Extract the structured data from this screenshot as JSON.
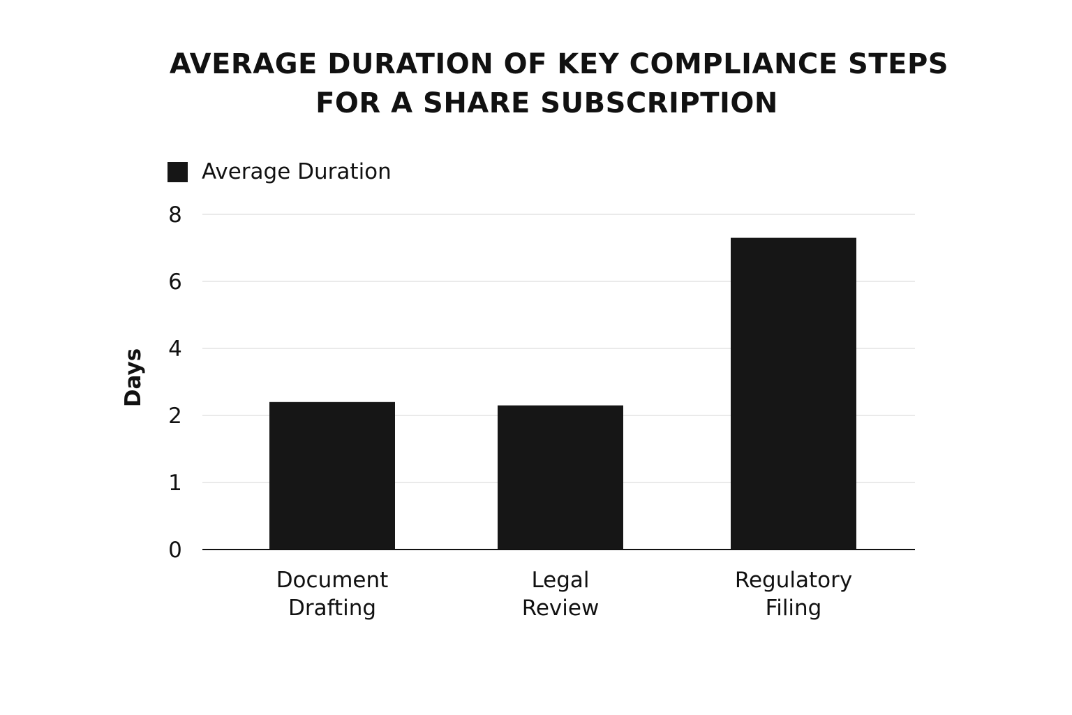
{
  "chart_data": {
    "type": "bar",
    "title_lines": [
      "AVERAGE DURATION OF KEY COMPLIANCE STEPS",
      "FOR A SHARE SUBSCRIPTION"
    ],
    "ylabel": "Days",
    "xlabel": "",
    "categories": [
      [
        "Document",
        "Drafting"
      ],
      [
        "Legal",
        "Review"
      ],
      [
        "Regulatory",
        "Filing"
      ]
    ],
    "series": [
      {
        "name": "Average Duration",
        "color": "#161616",
        "values": [
          2.4,
          2.3,
          7.3
        ]
      }
    ],
    "y_ticks": [
      "0",
      "1",
      "2",
      "4",
      "6",
      "8"
    ],
    "ylim": [
      0,
      8
    ],
    "grid": true,
    "legend_position": "top-left"
  }
}
